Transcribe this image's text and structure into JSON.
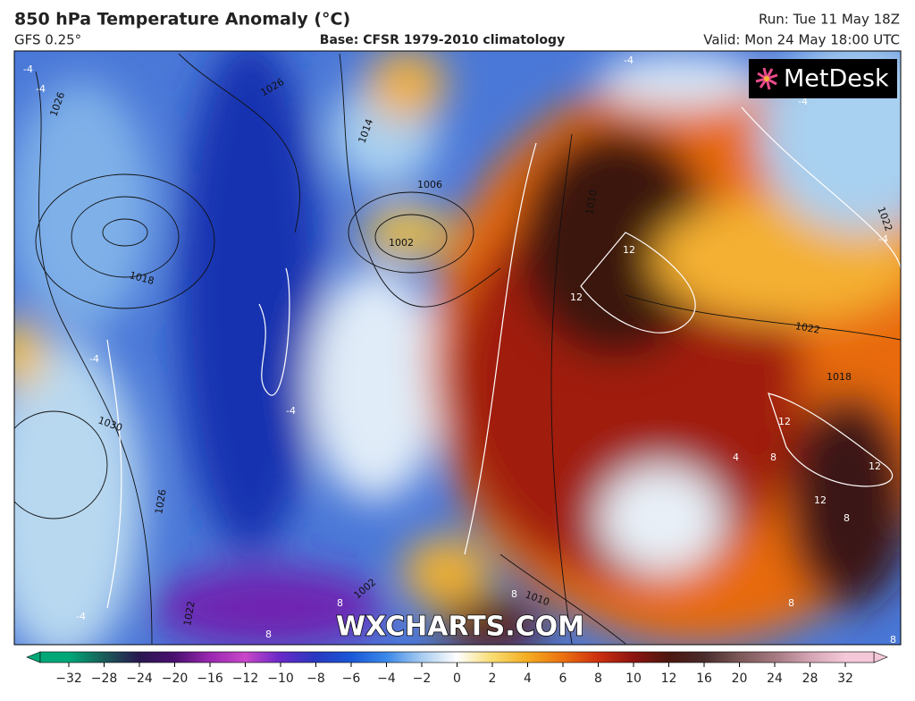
{
  "header": {
    "title": "850 hPa Temperature Anomaly (°C)",
    "model": "GFS 0.25°",
    "base": "Base: CFSR 1979-2010 climatology",
    "run": "Run: Tue 11 May 18Z",
    "valid": "Valid: Mon 24 May 18:00 UTC"
  },
  "logo": "MetDesk",
  "watermark": "WXCHARTS.COM",
  "map": {
    "isobar_labels": [
      1026,
      1026,
      1014,
      1006,
      1002,
      1018,
      1030,
      1026,
      1022,
      1022,
      1010,
      1010,
      1002,
      1018,
      1022
    ],
    "anomaly_labels": [
      -4,
      -4,
      -4,
      -4,
      -4,
      -4,
      -4,
      -4,
      12,
      12,
      12,
      12,
      12,
      8,
      8,
      8,
      8,
      8,
      8,
      8,
      4
    ]
  },
  "colorbar": {
    "ticks": [
      {
        "value": -32,
        "label": "−32"
      },
      {
        "value": -28,
        "label": "−28"
      },
      {
        "value": -24,
        "label": "−24"
      },
      {
        "value": -20,
        "label": "−20"
      },
      {
        "value": -16,
        "label": "−16"
      },
      {
        "value": -12,
        "label": "−12"
      },
      {
        "value": -10,
        "label": "−10"
      },
      {
        "value": -8,
        "label": "−8"
      },
      {
        "value": -6,
        "label": "−6"
      },
      {
        "value": -4,
        "label": "−4"
      },
      {
        "value": -2,
        "label": "−2"
      },
      0,
      2,
      4,
      6,
      8,
      10,
      12,
      16,
      20,
      24,
      28,
      32
    ],
    "colors": [
      "#00a878",
      "#1a5c58",
      "#2a1850",
      "#4a1070",
      "#9a28b0",
      "#c848c8",
      "#6828c8",
      "#2838c0",
      "#1a58d8",
      "#3a88e8",
      "#a8ccf0",
      "#ffffff",
      "#f8dc70",
      "#f4ac20",
      "#ec7010",
      "#cc3010",
      "#8c1410",
      "#4c1810",
      "#4a2c2c",
      "#7c5858",
      "#a47880",
      "#d4a4b4",
      "#f4c8d8"
    ]
  }
}
